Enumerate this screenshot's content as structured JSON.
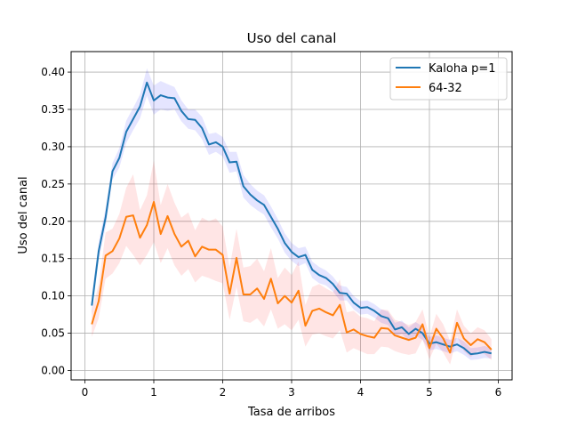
{
  "chart_data": {
    "type": "line",
    "title": "Uso del canal",
    "xlabel": "Tasa de arribos",
    "ylabel": "Uso del canal",
    "xlim": [
      -0.2,
      6.2
    ],
    "ylim": [
      -0.0125,
      0.4275
    ],
    "x_ticks": [
      0,
      1,
      2,
      3,
      4,
      5,
      6
    ],
    "x_tick_labels": [
      "0",
      "1",
      "2",
      "3",
      "4",
      "5",
      "6"
    ],
    "y_ticks": [
      0.0,
      0.05,
      0.1,
      0.15,
      0.2,
      0.25,
      0.3,
      0.35,
      0.4
    ],
    "y_tick_labels": [
      "0.00",
      "0.05",
      "0.10",
      "0.15",
      "0.20",
      "0.25",
      "0.30",
      "0.35",
      "0.40"
    ],
    "grid": true,
    "legend_position": "top-right",
    "x": [
      0.1,
      0.2,
      0.3,
      0.4,
      0.5,
      0.6,
      0.7,
      0.8,
      0.9,
      1.0,
      1.1,
      1.2,
      1.3,
      1.4,
      1.5,
      1.6,
      1.7,
      1.8,
      1.9,
      2.0,
      2.1,
      2.2,
      2.3,
      2.4,
      2.5,
      2.6,
      2.7,
      2.8,
      2.9,
      3.0,
      3.1,
      3.2,
      3.3,
      3.4,
      3.5,
      3.6,
      3.7,
      3.8,
      3.9,
      4.0,
      4.1,
      4.2,
      4.3,
      4.4,
      4.5,
      4.6,
      4.7,
      4.8,
      4.9,
      5.0,
      5.1,
      5.2,
      5.3,
      5.4,
      5.5,
      5.6,
      5.7,
      5.8,
      5.9
    ],
    "series": [
      {
        "name": "Kaloha p=1",
        "color": "#1f77b4",
        "band_color": "#0000ff",
        "values": [
          0.087,
          0.16,
          0.205,
          0.267,
          0.285,
          0.32,
          0.337,
          0.354,
          0.386,
          0.362,
          0.369,
          0.366,
          0.365,
          0.348,
          0.337,
          0.336,
          0.325,
          0.303,
          0.306,
          0.3,
          0.279,
          0.28,
          0.247,
          0.236,
          0.228,
          0.222,
          0.206,
          0.19,
          0.171,
          0.159,
          0.152,
          0.155,
          0.135,
          0.128,
          0.124,
          0.116,
          0.104,
          0.103,
          0.091,
          0.084,
          0.085,
          0.08,
          0.073,
          0.07,
          0.055,
          0.058,
          0.049,
          0.056,
          0.05,
          0.036,
          0.038,
          0.035,
          0.032,
          0.035,
          0.03,
          0.022,
          0.023,
          0.025,
          0.023
        ],
        "upper": [
          0.1,
          0.172,
          0.218,
          0.278,
          0.298,
          0.335,
          0.352,
          0.37,
          0.405,
          0.382,
          0.388,
          0.384,
          0.38,
          0.362,
          0.35,
          0.35,
          0.34,
          0.317,
          0.319,
          0.313,
          0.293,
          0.293,
          0.262,
          0.25,
          0.241,
          0.235,
          0.22,
          0.203,
          0.184,
          0.171,
          0.164,
          0.166,
          0.146,
          0.139,
          0.134,
          0.126,
          0.114,
          0.112,
          0.1,
          0.093,
          0.094,
          0.089,
          0.082,
          0.079,
          0.064,
          0.067,
          0.058,
          0.065,
          0.059,
          0.045,
          0.047,
          0.044,
          0.041,
          0.044,
          0.039,
          0.03,
          0.031,
          0.033,
          0.03
        ],
        "lower": [
          0.075,
          0.148,
          0.192,
          0.256,
          0.272,
          0.305,
          0.322,
          0.338,
          0.368,
          0.343,
          0.35,
          0.348,
          0.35,
          0.334,
          0.324,
          0.322,
          0.31,
          0.289,
          0.293,
          0.287,
          0.265,
          0.267,
          0.232,
          0.222,
          0.215,
          0.209,
          0.192,
          0.177,
          0.158,
          0.147,
          0.14,
          0.144,
          0.124,
          0.117,
          0.114,
          0.106,
          0.094,
          0.094,
          0.082,
          0.075,
          0.076,
          0.071,
          0.064,
          0.061,
          0.046,
          0.049,
          0.04,
          0.047,
          0.041,
          0.027,
          0.029,
          0.026,
          0.023,
          0.026,
          0.021,
          0.014,
          0.015,
          0.017,
          0.016
        ]
      },
      {
        "name": "64-32",
        "color": "#ff7f0e",
        "band_color": "#ff0000",
        "values": [
          0.062,
          0.093,
          0.154,
          0.16,
          0.177,
          0.206,
          0.208,
          0.178,
          0.195,
          0.226,
          0.183,
          0.207,
          0.183,
          0.166,
          0.174,
          0.153,
          0.166,
          0.162,
          0.162,
          0.155,
          0.103,
          0.151,
          0.102,
          0.102,
          0.11,
          0.096,
          0.123,
          0.09,
          0.1,
          0.091,
          0.107,
          0.06,
          0.08,
          0.083,
          0.078,
          0.074,
          0.088,
          0.051,
          0.055,
          0.049,
          0.046,
          0.044,
          0.057,
          0.056,
          0.047,
          0.044,
          0.041,
          0.044,
          0.062,
          0.03,
          0.056,
          0.043,
          0.024,
          0.064,
          0.043,
          0.034,
          0.042,
          0.038,
          0.028
        ],
        "upper": [
          0.08,
          0.115,
          0.185,
          0.19,
          0.21,
          0.245,
          0.263,
          0.215,
          0.235,
          0.281,
          0.222,
          0.25,
          0.225,
          0.205,
          0.212,
          0.188,
          0.205,
          0.2,
          0.204,
          0.193,
          0.138,
          0.19,
          0.138,
          0.14,
          0.15,
          0.133,
          0.164,
          0.124,
          0.138,
          0.128,
          0.146,
          0.088,
          0.112,
          0.116,
          0.11,
          0.105,
          0.122,
          0.078,
          0.08,
          0.072,
          0.07,
          0.066,
          0.082,
          0.081,
          0.068,
          0.065,
          0.061,
          0.065,
          0.082,
          0.045,
          0.076,
          0.062,
          0.04,
          0.082,
          0.06,
          0.05,
          0.058,
          0.054,
          0.042
        ],
        "lower": [
          0.045,
          0.07,
          0.123,
          0.13,
          0.144,
          0.167,
          0.155,
          0.141,
          0.155,
          0.172,
          0.144,
          0.164,
          0.141,
          0.127,
          0.136,
          0.118,
          0.127,
          0.124,
          0.12,
          0.117,
          0.068,
          0.112,
          0.066,
          0.064,
          0.07,
          0.059,
          0.082,
          0.056,
          0.062,
          0.054,
          0.068,
          0.032,
          0.048,
          0.05,
          0.046,
          0.043,
          0.054,
          0.024,
          0.03,
          0.026,
          0.022,
          0.022,
          0.032,
          0.031,
          0.026,
          0.023,
          0.021,
          0.023,
          0.042,
          0.015,
          0.036,
          0.024,
          0.008,
          0.046,
          0.026,
          0.018,
          0.026,
          0.022,
          0.014
        ]
      }
    ]
  }
}
